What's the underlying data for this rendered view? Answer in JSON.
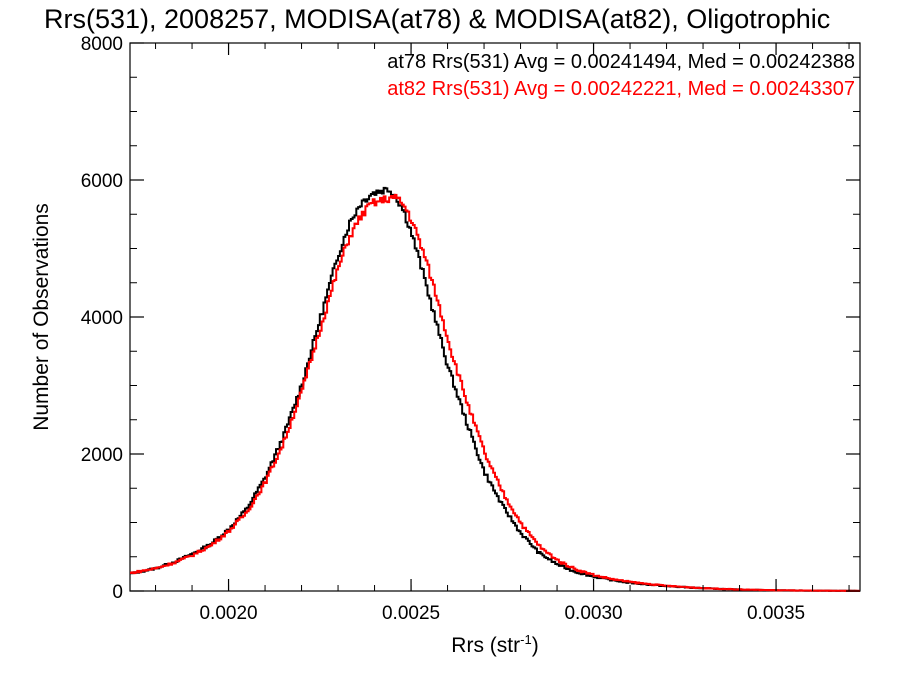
{
  "chart_data": {
    "type": "line",
    "title": "Rrs(531), 2008257, MODISA(at78) & MODISA(at82), Oligotrophic",
    "xlabel_base": "Rrs (str",
    "xlabel_sup": "-1",
    "xlabel_tail": ")",
    "ylabel": "Number of Observations",
    "xlim": [
      0.00173,
      0.00373
    ],
    "ylim": [
      0,
      8000
    ],
    "x_ticks": [
      {
        "value": 0.002,
        "label": "0.0020"
      },
      {
        "value": 0.0025,
        "label": "0.0025"
      },
      {
        "value": 0.003,
        "label": "0.0030"
      },
      {
        "value": 0.0035,
        "label": "0.0035"
      }
    ],
    "y_ticks": [
      {
        "value": 0,
        "label": "0"
      },
      {
        "value": 2000,
        "label": "2000"
      },
      {
        "value": 4000,
        "label": "4000"
      },
      {
        "value": 6000,
        "label": "6000"
      },
      {
        "value": 8000,
        "label": "8000"
      }
    ],
    "grid": false,
    "legend_position": "top-right",
    "series": [
      {
        "name": "at78",
        "color": "#000000",
        "annotation": "at78 Rrs(531) Avg = 0.00241494, Med = 0.00242388",
        "x": [
          0.00173,
          0.0018,
          0.00185,
          0.0019,
          0.00195,
          0.002,
          0.00205,
          0.0021,
          0.00215,
          0.0022,
          0.00225,
          0.0023,
          0.00233,
          0.00236,
          0.00239,
          0.00242,
          0.00244,
          0.00246,
          0.00248,
          0.0025,
          0.00253,
          0.00256,
          0.0026,
          0.00265,
          0.0027,
          0.00275,
          0.0028,
          0.00285,
          0.0029,
          0.00295,
          0.003,
          0.00305,
          0.0031,
          0.0032,
          0.0033,
          0.0034,
          0.0035,
          0.0036,
          0.00373
        ],
        "y": [
          250,
          330,
          420,
          540,
          680,
          900,
          1200,
          1650,
          2250,
          3000,
          3950,
          4900,
          5350,
          5650,
          5800,
          5850,
          5870,
          5750,
          5550,
          5250,
          4700,
          4100,
          3300,
          2500,
          1750,
          1250,
          850,
          560,
          390,
          280,
          210,
          160,
          120,
          70,
          40,
          20,
          10,
          5,
          2
        ]
      },
      {
        "name": "at82",
        "color": "#ff0000",
        "annotation": "at82 Rrs(531) Avg = 0.00242221, Med = 0.00243307",
        "x": [
          0.00173,
          0.0018,
          0.00185,
          0.0019,
          0.00195,
          0.002,
          0.00205,
          0.0021,
          0.00215,
          0.0022,
          0.00225,
          0.0023,
          0.00233,
          0.00236,
          0.00239,
          0.00242,
          0.00245,
          0.00247,
          0.00249,
          0.00251,
          0.00254,
          0.00257,
          0.00261,
          0.00266,
          0.00271,
          0.00276,
          0.00281,
          0.00286,
          0.00291,
          0.00296,
          0.00301,
          0.00306,
          0.00311,
          0.0032,
          0.0033,
          0.0034,
          0.0035,
          0.0036,
          0.00373
        ],
        "y": [
          260,
          330,
          410,
          520,
          660,
          870,
          1150,
          1580,
          2150,
          2900,
          3800,
          4700,
          5150,
          5450,
          5650,
          5700,
          5750,
          5700,
          5550,
          5300,
          4850,
          4300,
          3500,
          2650,
          1900,
          1350,
          920,
          610,
          420,
          300,
          220,
          165,
          125,
          75,
          42,
          22,
          11,
          5,
          2
        ]
      }
    ]
  }
}
